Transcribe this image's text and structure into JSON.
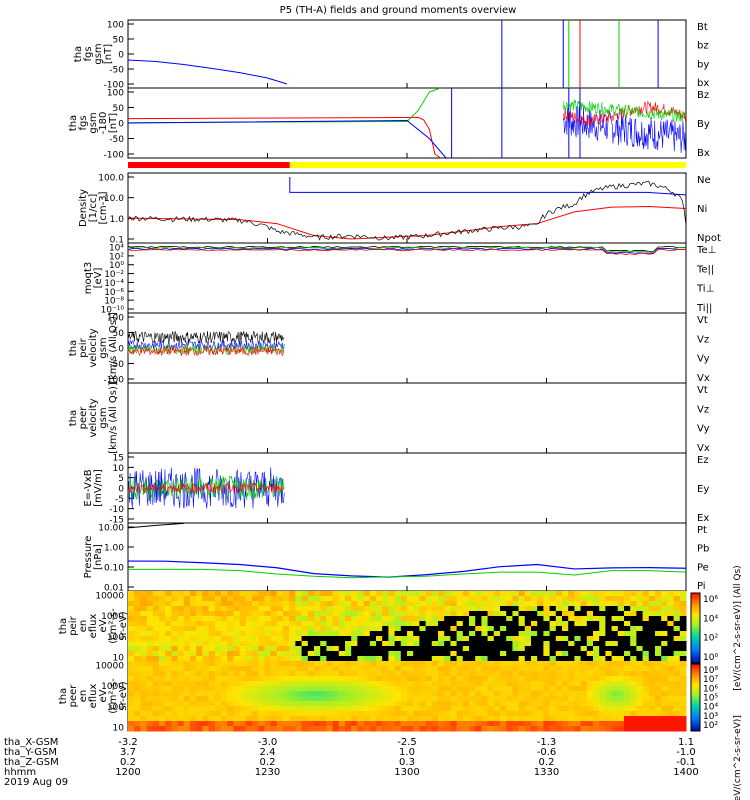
{
  "title": "P5 (TH-A) fields and ground moments overview",
  "colors": {
    "red": "#ff0000",
    "green": "#00d000",
    "blue": "#0000ff",
    "black": "#000000",
    "yellow": "#ffff00"
  },
  "panels": [
    {
      "id": "fgs",
      "label_lines": [
        "tha",
        "fgs",
        "gsm",
        "[nT]"
      ],
      "ticks": [
        "100",
        "50",
        "0",
        "-50",
        "-100"
      ],
      "legend": [
        {
          "text": "Bt",
          "color": "#000000"
        },
        {
          "text": "bz",
          "color": "#ff0000"
        },
        {
          "text": "by",
          "color": "#00d000"
        },
        {
          "text": "bx",
          "color": "#0000ff"
        }
      ]
    },
    {
      "id": "fgl",
      "label_lines": [
        "tha",
        "fgs",
        "gsm",
        "-180",
        "[nT]"
      ],
      "ticks": [
        "100",
        "50",
        "0",
        "-50",
        "-100"
      ],
      "legend": [
        {
          "text": "Bz",
          "color": "#ff0000"
        },
        {
          "text": "By",
          "color": "#00d000"
        },
        {
          "text": "Bx",
          "color": "#0000ff"
        }
      ]
    },
    {
      "id": "density",
      "label_lines": [
        "Density",
        "[1/cc]",
        "[cm-3]"
      ],
      "ticks": [
        "100.0",
        "10.0",
        "1.0",
        "0.1"
      ],
      "legend": [
        {
          "text": "Ne",
          "color": "#ff0000"
        },
        {
          "text": "Ni",
          "color": "#000000"
        },
        {
          "text": "Npot",
          "color": "#0000ff"
        }
      ]
    },
    {
      "id": "temp",
      "label_lines": [
        "moqt3",
        "[eV]"
      ],
      "ticks": [
        "10⁴",
        "10²",
        "10⁰",
        "10⁻²",
        "10⁻⁴",
        "10⁻⁶",
        "10⁻⁸",
        "10⁻¹⁰"
      ],
      "legend": [
        {
          "text": "Te⊥",
          "color": "#ff0000"
        },
        {
          "text": "Te||",
          "color": "#000000"
        },
        {
          "text": "Ti⊥",
          "color": "#0000ff"
        },
        {
          "text": "Ti||",
          "color": "#00d000"
        }
      ]
    },
    {
      "id": "vi",
      "label_lines": [
        "tha",
        "peir",
        "velocity",
        "gsm",
        "[km/s (All Qs)]"
      ],
      "ticks": [
        "100",
        "50",
        "0",
        "-50",
        "-100"
      ],
      "legend": [
        {
          "text": "Vt",
          "color": "#000000"
        },
        {
          "text": "Vz",
          "color": "#ff0000"
        },
        {
          "text": "Vy",
          "color": "#00d000"
        },
        {
          "text": "Vx",
          "color": "#0000ff"
        }
      ]
    },
    {
      "id": "ve",
      "label_lines": [
        "tha",
        "peer",
        "velocity",
        "gsm",
        "[km/s (All Qs)]"
      ],
      "ticks": [],
      "legend": [
        {
          "text": "Vt",
          "color": "#000000"
        },
        {
          "text": "Vz",
          "color": "#ff0000"
        },
        {
          "text": "Vy",
          "color": "#00d000"
        },
        {
          "text": "Vx",
          "color": "#0000ff"
        }
      ]
    },
    {
      "id": "efield",
      "label_lines": [
        "E=-VxB",
        "[mV/m]"
      ],
      "ticks": [
        "15",
        "10",
        "5",
        "0",
        "-5",
        "-10",
        "-15"
      ],
      "legend": [
        {
          "text": "Ez",
          "color": "#ff0000"
        },
        {
          "text": "Ey",
          "color": "#00d000"
        },
        {
          "text": "Ex",
          "color": "#0000ff"
        }
      ]
    },
    {
      "id": "pressure",
      "label_lines": [
        "Pressure",
        "[nPa]"
      ],
      "ticks": [
        "10.00",
        "1.00",
        "0.10",
        "0.01"
      ],
      "legend": [
        {
          "text": "Pt",
          "color": "#000000"
        },
        {
          "text": "Pb",
          "color": "#ff0000"
        },
        {
          "text": "Pe",
          "color": "#00d000"
        },
        {
          "text": "Pi",
          "color": "#0000ff"
        }
      ]
    },
    {
      "id": "ion_spec",
      "label_lines": [
        "tha",
        "peir",
        "en",
        "eflux",
        "eV",
        "(cm²-s-",
        "sr-eV)"
      ],
      "ticks": [
        "10000",
        "1000",
        "100",
        "10"
      ],
      "legend": []
    },
    {
      "id": "ele_spec",
      "label_lines": [
        "tha",
        "peer",
        "en",
        "eflux",
        "eV",
        "(cm²-s-",
        "sr-eV)"
      ],
      "ticks": [
        "10000",
        "1000",
        "100",
        "10"
      ],
      "legend": []
    }
  ],
  "colorbar": {
    "ticks": [
      "10⁶",
      "10⁴",
      "10²",
      "10⁰"
    ],
    "label": "[eV/(cm^2-s-sr-eV)] (All Qs)"
  },
  "colorbar2": {
    "ticks": [
      "10⁸",
      "10⁷",
      "10⁶",
      "10⁵",
      "10⁴",
      "10³",
      "10²"
    ],
    "label": "[eV/(cm^2-s-sr-eV)]"
  },
  "orbit": {
    "rows": [
      {
        "label": "tha_X-GSM",
        "values": [
          "-3.2",
          "-3.0",
          "-2.5",
          "-1.3",
          "1.1"
        ]
      },
      {
        "label": "tha_Y-GSM",
        "values": [
          "3.7",
          "2.4",
          "1.0",
          "-0.6",
          "-1.0"
        ]
      },
      {
        "label": "tha_Z-GSM",
        "values": [
          "0.2",
          "0.2",
          "0.3",
          "0.2",
          "-0.1"
        ]
      },
      {
        "label": "hhmm",
        "values": [
          "1200",
          "1230",
          "1300",
          "1330",
          "1400"
        ]
      }
    ],
    "date": "2019 Aug 09"
  },
  "chart_data": {
    "type": "line",
    "title": "P5 (TH-A) fields and ground moments overview",
    "x_ticks": [
      "1200",
      "1230",
      "1300",
      "1330",
      "1400"
    ],
    "fgs_bx": {
      "x_frac": [
        0.0,
        0.05,
        0.1,
        0.15,
        0.2,
        0.25,
        0.285
      ],
      "values": [
        -20,
        -25,
        -35,
        -48,
        -62,
        -80,
        -100
      ]
    },
    "fgl_flat": {
      "bz": 18,
      "by": 5,
      "bx": 0
    },
    "density": {
      "npot": [
        {
          "t": 0.0,
          "v": ""
        },
        {
          "t": 0.29,
          "v": 150
        },
        {
          "t": 0.45,
          "v": 20
        },
        {
          "t": 0.93,
          "v": 20
        },
        {
          "t": 1.0,
          "v": 15
        }
      ],
      "ne": [
        0.95,
        0.9,
        0.85,
        0.8,
        0.5,
        0.12,
        0.08,
        0.1,
        0.12,
        0.2,
        0.35,
        0.5,
        2.0,
        3.5,
        3.8,
        3.0
      ],
      "ni": [
        1.0,
        0.9,
        0.85,
        0.75,
        0.2,
        0.1,
        0.12,
        0.09,
        0.12,
        0.2,
        0.3,
        0.4,
        5.0,
        40,
        60,
        0.4
      ]
    },
    "mode_bar": [
      {
        "from": 0.0,
        "to": 0.29,
        "color": "#ff0000"
      },
      {
        "from": 0.29,
        "to": 1.0,
        "color": "#ffff00"
      }
    ],
    "pressure": {
      "pi": [
        0.2,
        0.18,
        0.16,
        0.14,
        0.08,
        0.04,
        0.03,
        0.03,
        0.04,
        0.06,
        0.09,
        0.12,
        0.08,
        0.08,
        0.09,
        0.08
      ],
      "pe": [
        0.07,
        0.07,
        0.07,
        0.06,
        0.04,
        0.03,
        0.025,
        0.028,
        0.03,
        0.04,
        0.05,
        0.05,
        0.035,
        0.06,
        0.06,
        0.05
      ]
    }
  }
}
